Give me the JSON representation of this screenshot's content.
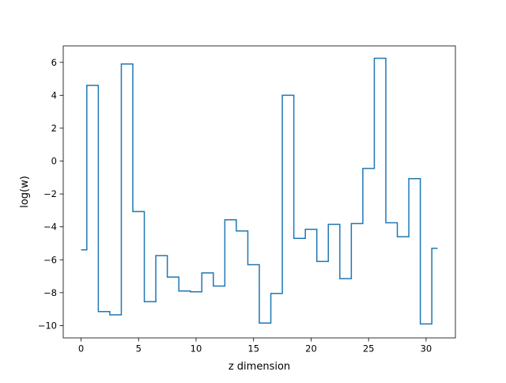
{
  "chart_data": {
    "type": "line",
    "drawstyle": "steps-mid",
    "title": "",
    "xlabel": "z dimension",
    "ylabel": "log(w)",
    "xlim": [
      -1.55,
      32.55
    ],
    "ylim": [
      -10.75,
      7.0
    ],
    "xticks": [
      0,
      5,
      10,
      15,
      20,
      25,
      30
    ],
    "yticks": [
      -10,
      -8,
      -6,
      -4,
      -2,
      0,
      2,
      4,
      6
    ],
    "grid": false,
    "line_color": "#1f77b4",
    "series": [
      {
        "x": [
          0,
          1,
          2,
          3,
          4,
          5,
          6,
          7,
          8,
          9,
          10,
          11,
          12,
          13,
          14,
          15,
          16,
          17,
          18,
          19,
          20,
          21,
          22,
          23,
          24,
          25,
          26,
          27,
          28,
          29,
          30,
          31
        ],
        "values": [
          -5.4,
          4.6,
          -9.15,
          -9.35,
          5.9,
          -3.07,
          -8.55,
          -5.75,
          -7.05,
          -7.9,
          -7.95,
          -6.8,
          -7.6,
          -3.57,
          -4.25,
          -6.3,
          -9.85,
          -8.05,
          4.0,
          -4.7,
          -4.15,
          -6.1,
          -3.85,
          -7.15,
          -3.8,
          -0.45,
          6.25,
          -3.75,
          -4.6,
          -1.07,
          -9.9,
          -5.3
        ]
      }
    ]
  }
}
